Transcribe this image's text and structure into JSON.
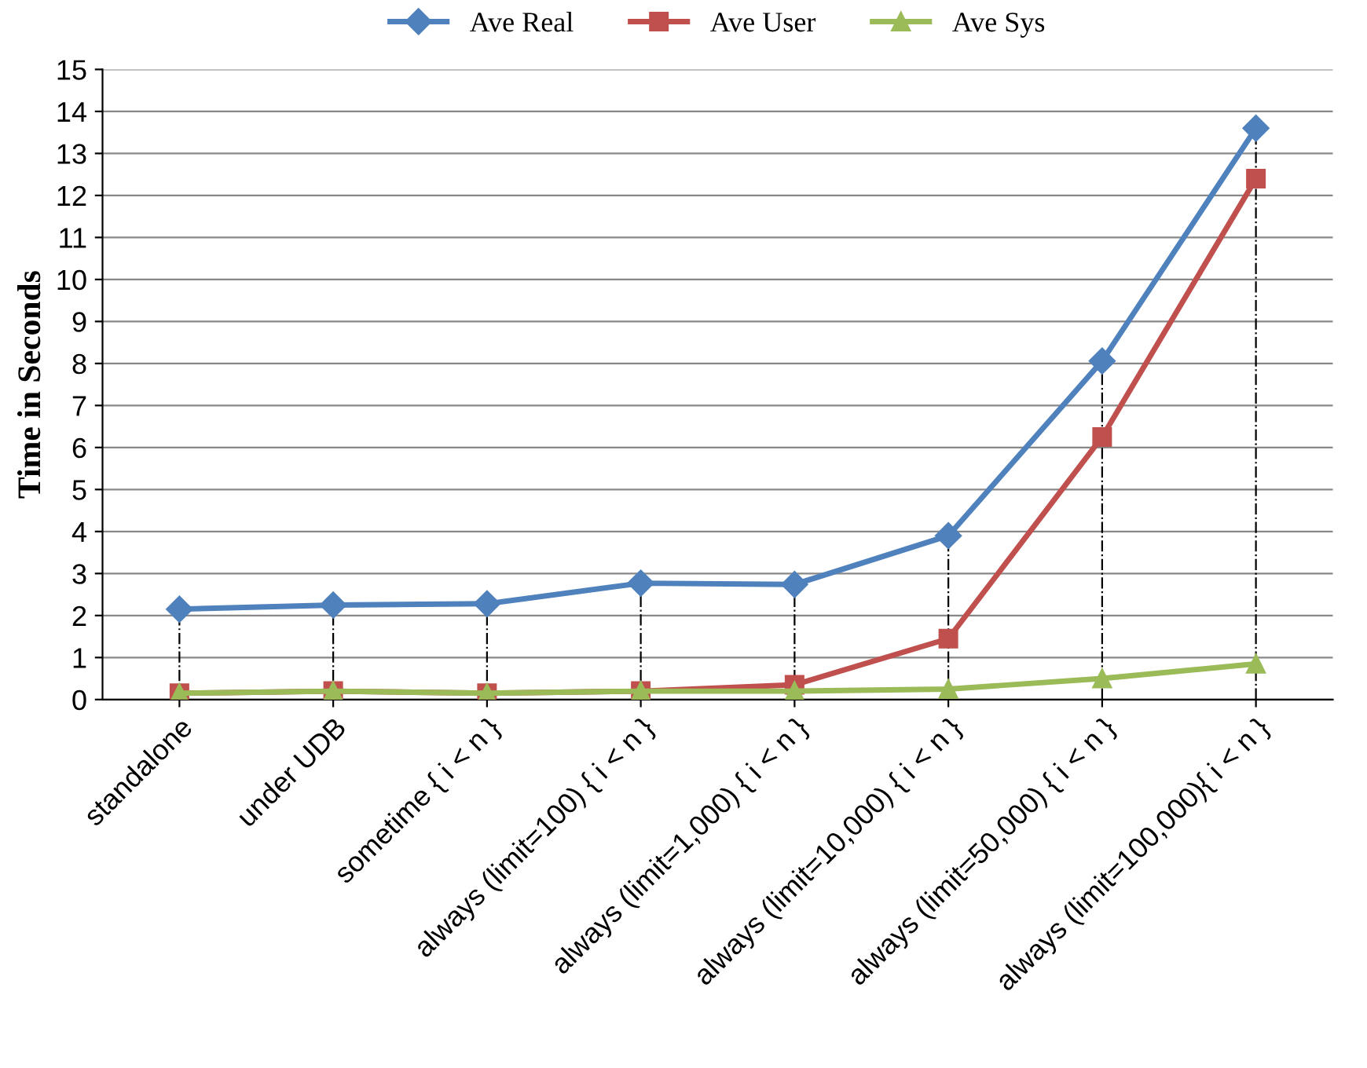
{
  "chart_data": {
    "type": "line",
    "ylabel": "Time in Seconds",
    "categories": [
      "standalone",
      "under UDB",
      "sometime { i < n }",
      "always (limit=100) { i < n }",
      "always (limit=1,000) { i < n }",
      "always (limit=10,000) { i < n }",
      "always (limit=50,000) { i < n }",
      "always (limit=100,000){ i < n }"
    ],
    "series": [
      {
        "name": "Ave Real",
        "color": "#4f81bd",
        "marker": "diamond",
        "values": [
          2.15,
          2.25,
          2.28,
          2.77,
          2.74,
          3.9,
          8.06,
          13.6
        ],
        "errors": [
          [
            0,
            2.15
          ],
          [
            0,
            2.25
          ],
          [
            0,
            2.28
          ],
          [
            0,
            2.77
          ],
          [
            0,
            2.74
          ],
          [
            0,
            3.9
          ],
          [
            0,
            8.06
          ],
          [
            0,
            13.6
          ]
        ]
      },
      {
        "name": "Ave User",
        "color": "#c0504d",
        "marker": "square",
        "values": [
          0.15,
          0.2,
          0.15,
          0.2,
          0.35,
          1.45,
          6.25,
          12.4
        ]
      },
      {
        "name": "Ave Sys",
        "color": "#9bbb59",
        "marker": "triangle",
        "values": [
          0.15,
          0.2,
          0.15,
          0.2,
          0.2,
          0.25,
          0.5,
          0.85
        ]
      }
    ],
    "ylim": [
      0,
      15
    ],
    "yticks": [
      0,
      1,
      2,
      3,
      4,
      5,
      6,
      7,
      8,
      9,
      10,
      11,
      12,
      13,
      14,
      15
    ],
    "grid": "y",
    "legend": "top",
    "line_style": "solid"
  }
}
